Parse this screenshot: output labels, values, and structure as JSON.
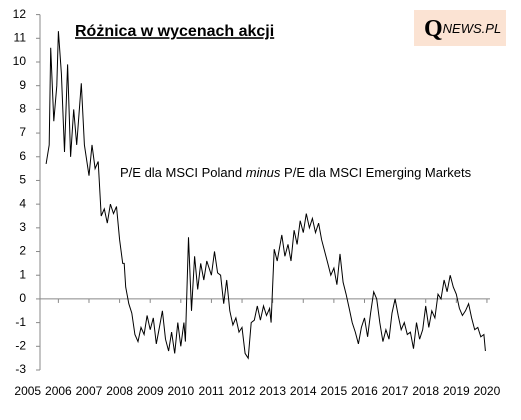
{
  "chart_data": {
    "type": "line",
    "title": "Różnica w wycenach akcji",
    "logo": [
      "Q",
      "NEWS.PL"
    ],
    "annotation": [
      "P/E dla MSCI Poland ",
      "minus",
      " P/E dla MSCI Emerging Markets"
    ],
    "color": "#000000",
    "x": [
      2005.6,
      2005.7,
      2005.75,
      2005.85,
      2005.95,
      2006.0,
      2006.1,
      2006.2,
      2006.3,
      2006.4,
      2006.5,
      2006.6,
      2006.75,
      2006.85,
      2007.0,
      2007.1,
      2007.2,
      2007.3,
      2007.4,
      2007.5,
      2007.6,
      2007.7,
      2007.8,
      2007.9,
      2008.0,
      2008.1,
      2008.15,
      2008.2,
      2008.3,
      2008.4,
      2008.5,
      2008.6,
      2008.7,
      2008.8,
      2008.9,
      2009.0,
      2009.1,
      2009.2,
      2009.3,
      2009.4,
      2009.5,
      2009.6,
      2009.7,
      2009.8,
      2009.9,
      2010.0,
      2010.1,
      2010.15,
      2010.25,
      2010.35,
      2010.45,
      2010.55,
      2010.65,
      2010.75,
      2010.85,
      2011.0,
      2011.1,
      2011.2,
      2011.3,
      2011.4,
      2011.5,
      2011.6,
      2011.7,
      2011.8,
      2011.9,
      2012.0,
      2012.1,
      2012.2,
      2012.3,
      2012.4,
      2012.5,
      2012.6,
      2012.7,
      2012.8,
      2012.9,
      2012.95,
      2013.05,
      2013.15,
      2013.3,
      2013.4,
      2013.5,
      2013.6,
      2013.7,
      2013.8,
      2013.9,
      2014.0,
      2014.1,
      2014.2,
      2014.3,
      2014.4,
      2014.5,
      2014.6,
      2014.7,
      2014.8,
      2014.9,
      2015.0,
      2015.1,
      2015.2,
      2015.3,
      2015.4,
      2015.5,
      2015.6,
      2015.7,
      2015.8,
      2015.9,
      2016.0,
      2016.1,
      2016.2,
      2016.3,
      2016.4,
      2016.5,
      2016.6,
      2016.7,
      2016.8,
      2016.9,
      2017.0,
      2017.1,
      2017.2,
      2017.3,
      2017.4,
      2017.5,
      2017.6,
      2017.7,
      2017.8,
      2017.9,
      2018.0,
      2018.1,
      2018.2,
      2018.3,
      2018.4,
      2018.5,
      2018.6,
      2018.7,
      2018.8,
      2018.9,
      2019.0,
      2019.1,
      2019.2,
      2019.3,
      2019.4,
      2019.5,
      2019.6,
      2019.7,
      2019.8,
      2019.9,
      2019.95
    ],
    "values": [
      5.7,
      6.5,
      10.6,
      7.5,
      9.0,
      11.3,
      9.5,
      6.2,
      9.9,
      6.0,
      8.0,
      6.5,
      9.1,
      6.5,
      5.2,
      6.5,
      5.5,
      5.8,
      3.5,
      3.8,
      3.2,
      4.0,
      3.6,
      3.9,
      2.5,
      1.5,
      1.5,
      0.5,
      -0.2,
      -0.6,
      -1.5,
      -1.8,
      -1.2,
      -1.5,
      -0.7,
      -1.3,
      -0.8,
      -1.9,
      -1.2,
      -0.5,
      -1.7,
      -2.2,
      -1.4,
      -2.3,
      -1.0,
      -2.0,
      -1.0,
      -1.8,
      2.6,
      -0.5,
      1.8,
      0.4,
      1.5,
      0.8,
      1.6,
      1.0,
      2.0,
      1.1,
      1.0,
      -0.2,
      0.8,
      -0.5,
      -1.1,
      -0.8,
      -1.4,
      -1.2,
      -2.3,
      -2.5,
      -1.0,
      -0.9,
      -0.3,
      -0.9,
      -0.3,
      -0.7,
      -0.4,
      -1.0,
      2.1,
      1.6,
      2.7,
      1.8,
      2.3,
      1.6,
      2.9,
      2.3,
      3.3,
      2.8,
      3.6,
      3.0,
      3.4,
      2.8,
      3.2,
      2.5,
      2.0,
      1.5,
      1.0,
      1.3,
      0.6,
      1.9,
      0.7,
      0.2,
      -0.4,
      -1.0,
      -1.4,
      -1.9,
      -1.2,
      -0.8,
      -1.6,
      -0.6,
      0.3,
      0.0,
      -1.0,
      -1.8,
      -1.3,
      -1.7,
      -0.6,
      0.0,
      -0.7,
      -1.3,
      -1.0,
      -1.5,
      -1.4,
      -2.1,
      -1.0,
      -1.7,
      -1.3,
      -0.3,
      -1.2,
      -0.5,
      -0.8,
      0.2,
      0.0,
      0.8,
      0.3,
      1.0,
      0.5,
      0.2,
      -0.4,
      -0.7,
      -0.5,
      -0.2,
      -0.8,
      -1.3,
      -1.2,
      -1.6,
      -1.5,
      -2.2
    ],
    "xlim": [
      2005.4,
      2020.1
    ],
    "xticks": [
      2005,
      2006,
      2007,
      2008,
      2009,
      2010,
      2011,
      2012,
      2013,
      2014,
      2015,
      2016,
      2017,
      2018,
      2019,
      2020
    ],
    "ylim": [
      -3,
      12
    ],
    "yticks": [
      -3,
      -2,
      -1,
      0,
      1,
      2,
      3,
      4,
      5,
      6,
      7,
      8,
      9,
      10,
      11,
      12
    ]
  }
}
